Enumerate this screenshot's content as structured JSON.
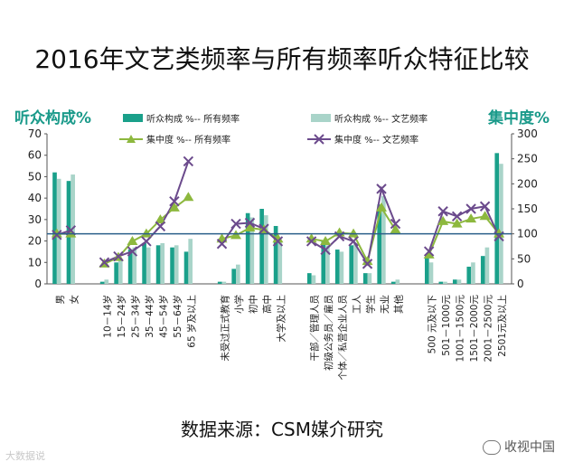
{
  "title": "2016年文艺类频率与所有频率听众特征比较",
  "source": "数据来源：CSM媒介研究",
  "watermark_left": "大数据说",
  "watermark_right": "收视中国",
  "colors": {
    "bar_all": "#1aa08a",
    "bar_art": "#a9d4c9",
    "line_all": "#8db83e",
    "line_art": "#6b4a8c",
    "ref_line": "#2b5f8a",
    "axis_title": "#1a9a8a"
  },
  "chart_data": {
    "type": "bar+line",
    "left_axis_title": "听众构成%",
    "right_axis_title": "集中度%",
    "left_ylim": [
      0,
      70
    ],
    "left_ticks": [
      0,
      10,
      20,
      30,
      40,
      50,
      60,
      70
    ],
    "right_ylim": [
      0,
      300
    ],
    "right_ticks": [
      0,
      50,
      100,
      150,
      200,
      250,
      300
    ],
    "reference_value": 100,
    "legend": {
      "bar_all": "听众构成 %-- 所有频率",
      "bar_art": "听众构成 %-- 文艺频率",
      "line_all": "集中度 %-- 所有频率",
      "line_art": "集中度 %-- 文艺频率"
    },
    "groups": [
      {
        "categories": [
          "男",
          "女"
        ],
        "bar_all": [
          52,
          48
        ],
        "bar_art": [
          49,
          51
        ],
        "line_all": [
          100,
          100
        ],
        "line_art": [
          98,
          107
        ]
      },
      {
        "categories": [
          "10－14岁",
          "15－24岁",
          "25－34岁",
          "35－44岁",
          "45－54岁",
          "55－64岁",
          "65 岁及以上"
        ],
        "bar_all": [
          1,
          10,
          16,
          19,
          18,
          17,
          15
        ],
        "bar_art": [
          2,
          11,
          17,
          17,
          19,
          18,
          21
        ],
        "line_all": [
          40,
          53,
          85,
          100,
          128,
          152,
          173
        ],
        "line_art": [
          43,
          55,
          65,
          85,
          115,
          165,
          245
        ]
      },
      {
        "categories": [
          "未受过正式教育",
          "小学",
          "初中",
          "高中",
          "大学及以上"
        ],
        "bar_all": [
          1,
          7,
          33,
          35,
          27
        ],
        "bar_art": [
          1,
          9,
          31,
          32,
          20
        ],
        "line_all": [
          90,
          97,
          112,
          108,
          90
        ],
        "line_art": [
          80,
          120,
          122,
          110,
          85
        ]
      },
      {
        "categories": [
          "干部／管理人员",
          "初级公务员／雇员",
          "个体／私营企业人员",
          "工人",
          "学生",
          "无业",
          "其他"
        ],
        "bar_all": [
          5,
          20,
          16,
          18,
          5,
          37,
          1
        ],
        "bar_art": [
          4,
          18,
          15,
          19,
          5,
          41,
          2
        ],
        "line_all": [
          90,
          85,
          102,
          100,
          45,
          152,
          108
        ],
        "line_art": [
          85,
          68,
          95,
          85,
          40,
          190,
          120
        ]
      },
      {
        "categories": [
          "500 元及以下",
          "501－1000元",
          "1001－1500元",
          "1501－2000元",
          "2001－2500元",
          "2501元及以上"
        ],
        "bar_all": [
          13,
          1,
          2,
          8,
          13,
          61
        ],
        "bar_art": [
          10,
          1,
          2,
          10,
          17,
          56
        ],
        "line_all": [
          58,
          125,
          120,
          130,
          135,
          100
        ],
        "line_art": [
          65,
          145,
          135,
          150,
          155,
          95
        ]
      }
    ]
  }
}
